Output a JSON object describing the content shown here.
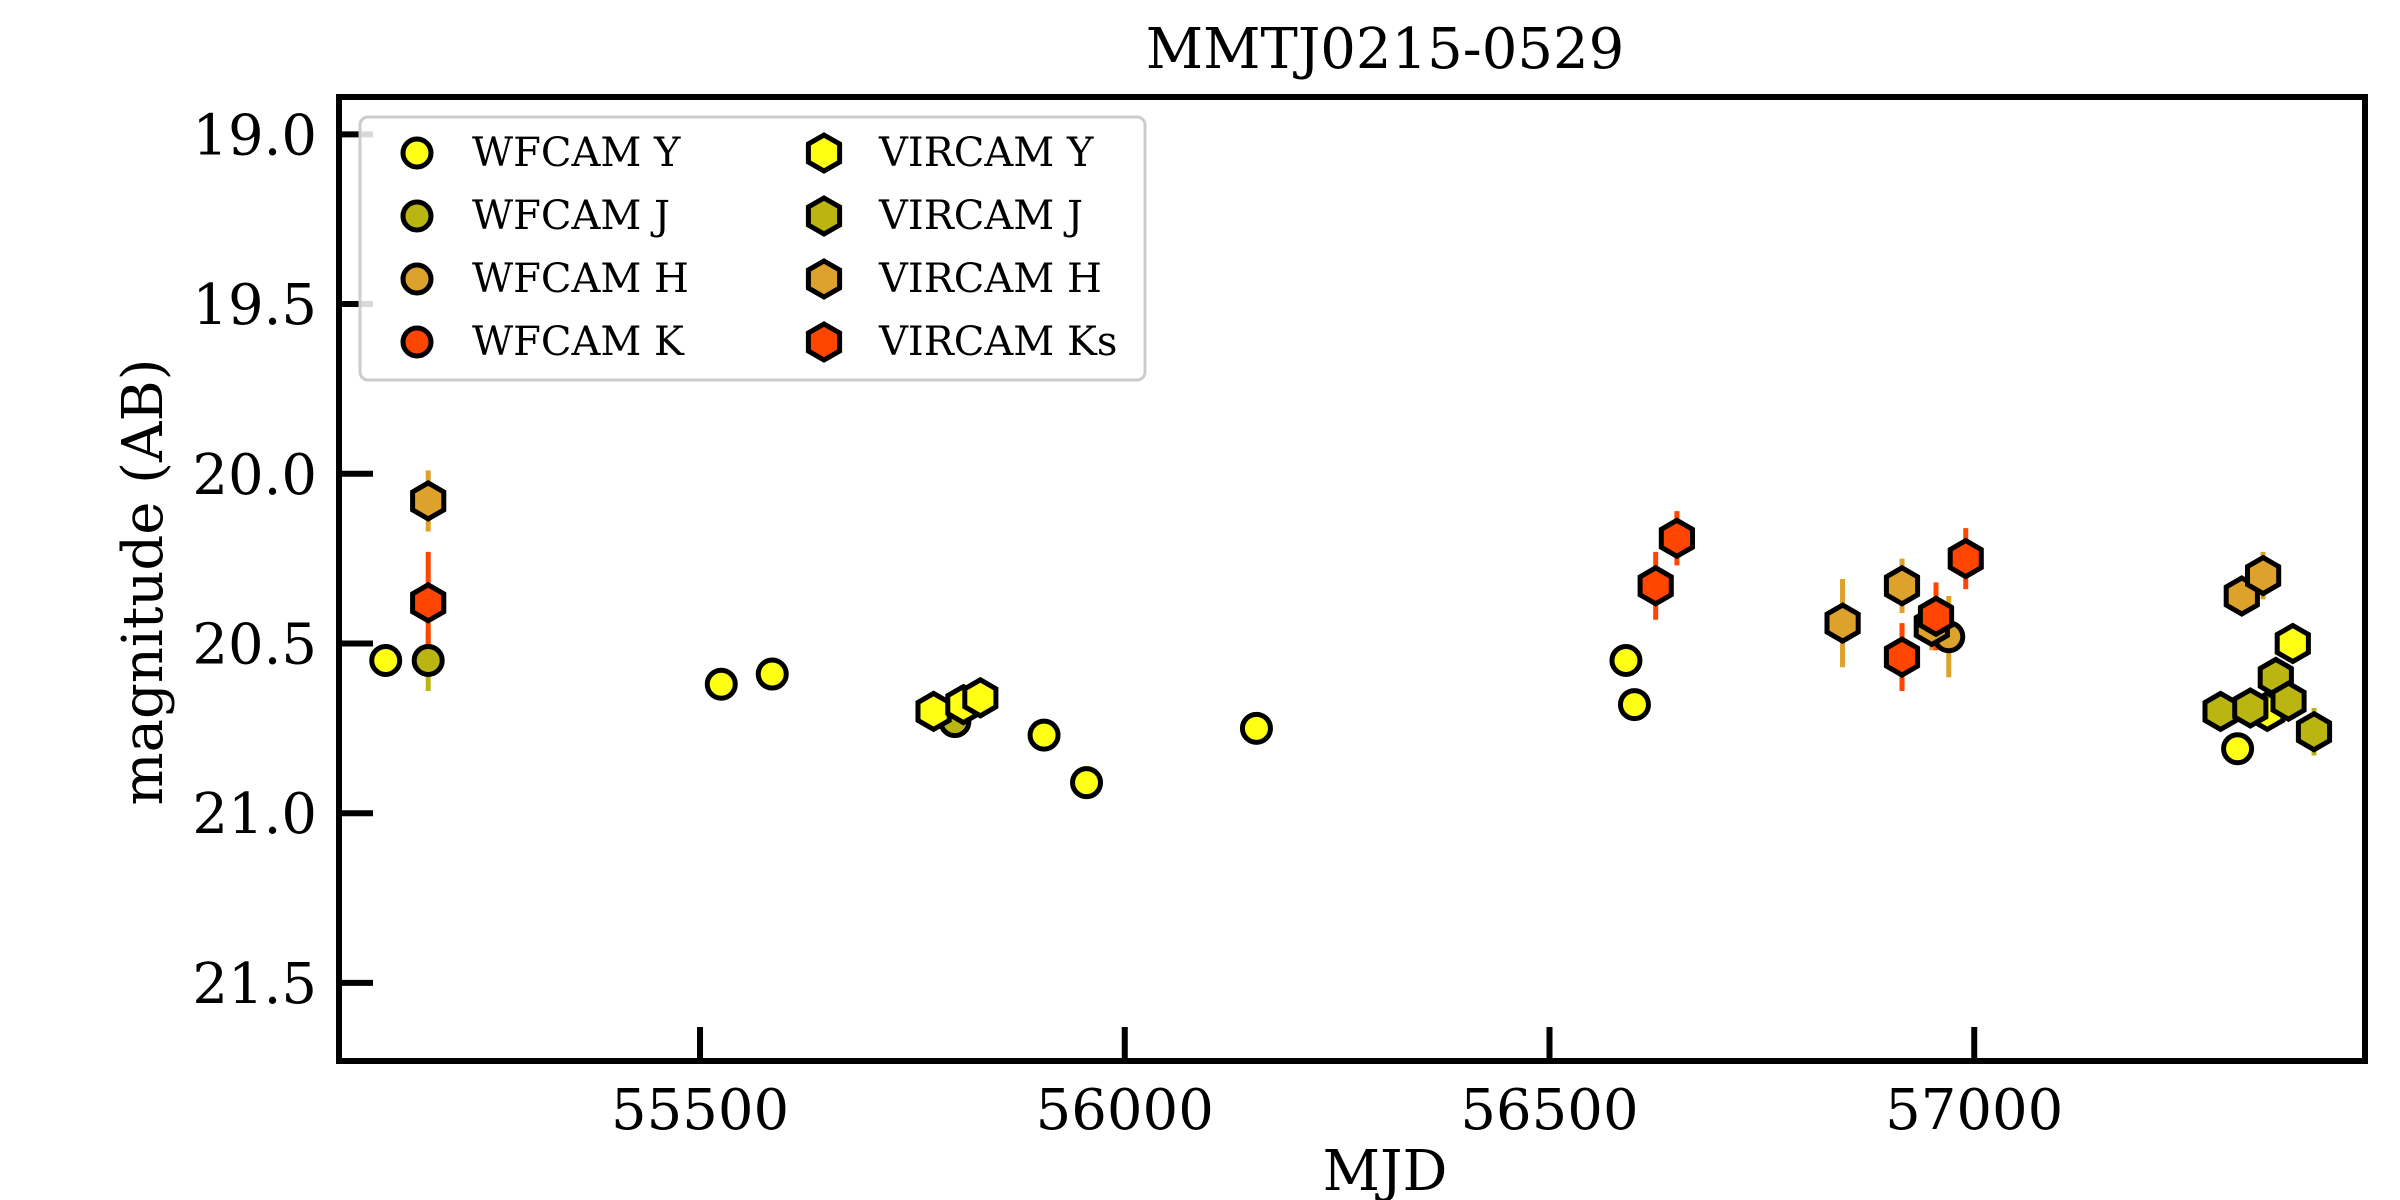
{
  "chart_data": {
    "type": "scatter",
    "title": "MMTJ0215-0529",
    "xlabel": "MJD",
    "ylabel": "magnitude (AB)",
    "xlim": [
      55075,
      57460
    ],
    "ylim": [
      21.73,
      18.89
    ],
    "y_inverted": true,
    "xticks": [
      55500,
      56000,
      56500,
      57000
    ],
    "xtick_labels": [
      "55500",
      "56000",
      "56500",
      "57000"
    ],
    "yticks": [
      19.0,
      19.5,
      20.0,
      20.5,
      21.0,
      21.5
    ],
    "ytick_labels": [
      "19.0",
      "19.5",
      "20.0",
      "20.5",
      "21.0",
      "21.5"
    ],
    "legend_position": "top-left",
    "series": [
      {
        "name": "WFCAM Y",
        "marker": "circle",
        "color": "#ffff14",
        "points": [
          {
            "x": 55130,
            "y": 20.55,
            "err": 0.03
          },
          {
            "x": 55525,
            "y": 20.62,
            "err": 0.03
          },
          {
            "x": 55585,
            "y": 20.59,
            "err": 0.04
          },
          {
            "x": 55905,
            "y": 20.77,
            "err": 0.03
          },
          {
            "x": 55955,
            "y": 20.91,
            "err": 0.05
          },
          {
            "x": 56155,
            "y": 20.75,
            "err": 0.03
          },
          {
            "x": 56590,
            "y": 20.55,
            "err": 0.03
          },
          {
            "x": 56600,
            "y": 20.68,
            "err": 0.03
          },
          {
            "x": 57310,
            "y": 20.81,
            "err": 0.03
          }
        ]
      },
      {
        "name": "WFCAM J",
        "marker": "circle",
        "color": "#bbb512",
        "points": [
          {
            "x": 55180,
            "y": 20.55,
            "err": 0.09
          },
          {
            "x": 55800,
            "y": 20.73,
            "err": 0.03
          }
        ]
      },
      {
        "name": "WFCAM H",
        "marker": "circle",
        "color": "#dca22c",
        "points": [
          {
            "x": 56970,
            "y": 20.48,
            "err": 0.12
          }
        ]
      },
      {
        "name": "WFCAM K",
        "marker": "circle",
        "color": "#ff4500",
        "points": []
      },
      {
        "name": "VIRCAM Y",
        "marker": "hexagon",
        "color": "#ffff14",
        "points": [
          {
            "x": 55775,
            "y": 20.7,
            "err": 0.03
          },
          {
            "x": 55810,
            "y": 20.68,
            "err": 0.03
          },
          {
            "x": 55830,
            "y": 20.66,
            "err": 0.03
          },
          {
            "x": 57345,
            "y": 20.7,
            "err": 0.04
          },
          {
            "x": 57375,
            "y": 20.5,
            "err": 0.04
          }
        ]
      },
      {
        "name": "VIRCAM J",
        "marker": "hexagon",
        "color": "#bbb512",
        "points": [
          {
            "x": 57290,
            "y": 20.7,
            "err": 0.04
          },
          {
            "x": 57325,
            "y": 20.69,
            "err": 0.05
          },
          {
            "x": 57355,
            "y": 20.6,
            "err": 0.05
          },
          {
            "x": 57370,
            "y": 20.67,
            "err": 0.04
          },
          {
            "x": 57400,
            "y": 20.76,
            "err": 0.07
          }
        ]
      },
      {
        "name": "VIRCAM H",
        "marker": "hexagon",
        "color": "#dca22c",
        "points": [
          {
            "x": 55180,
            "y": 20.08,
            "err": 0.09
          },
          {
            "x": 56845,
            "y": 20.44,
            "err": 0.13
          },
          {
            "x": 56915,
            "y": 20.33,
            "err": 0.08
          },
          {
            "x": 56950,
            "y": 20.45,
            "err": 0.07
          },
          {
            "x": 57315,
            "y": 20.36,
            "err": 0.05
          },
          {
            "x": 57340,
            "y": 20.3,
            "err": 0.07
          }
        ]
      },
      {
        "name": "VIRCAM Ks",
        "marker": "hexagon",
        "color": "#ff4500",
        "points": [
          {
            "x": 55180,
            "y": 20.38,
            "err": 0.15
          },
          {
            "x": 56625,
            "y": 20.33,
            "err": 0.1
          },
          {
            "x": 56650,
            "y": 20.19,
            "err": 0.08
          },
          {
            "x": 56915,
            "y": 20.54,
            "err": 0.1
          },
          {
            "x": 56955,
            "y": 20.42,
            "err": 0.1
          },
          {
            "x": 56990,
            "y": 20.25,
            "err": 0.09
          }
        ]
      }
    ]
  }
}
